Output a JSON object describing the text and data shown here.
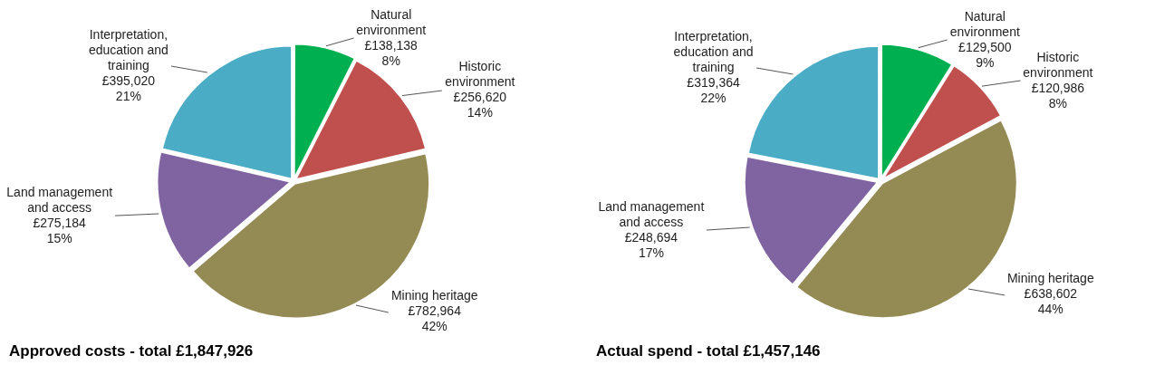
{
  "chart_data": [
    {
      "type": "pie",
      "title": "Approved costs - total £1,847,926",
      "categories": [
        "Natural environment",
        "Historic environment",
        "Mining heritage",
        "Land management and access",
        "Interpretation, education and training"
      ],
      "values": [
        138138,
        256620,
        782964,
        275184,
        395020
      ],
      "colors": [
        "#00b050",
        "#c0504d",
        "#948a54",
        "#8064a2",
        "#4bacc6"
      ],
      "value_labels": [
        "£138,138\n8%",
        "£256,620\n14%",
        "£782,964\n42%",
        "£275,184\n15%",
        "£395,020\n21%"
      ],
      "legend": false
    },
    {
      "type": "pie",
      "title": "Actual spend - total £1,457,146",
      "categories": [
        "Natural environment",
        "Historic environment",
        "Mining heritage",
        "Land management and access",
        "Interpretation, education and training"
      ],
      "values": [
        129500,
        120986,
        638602,
        248694,
        319364
      ],
      "colors": [
        "#00b050",
        "#c0504d",
        "#948a54",
        "#8064a2",
        "#4bacc6"
      ],
      "value_labels": [
        "£129,500\n9%",
        "£120,986\n8%",
        "£638,602\n44%",
        "£248,694\n17%",
        "£319,364\n22%"
      ],
      "legend": false
    }
  ]
}
